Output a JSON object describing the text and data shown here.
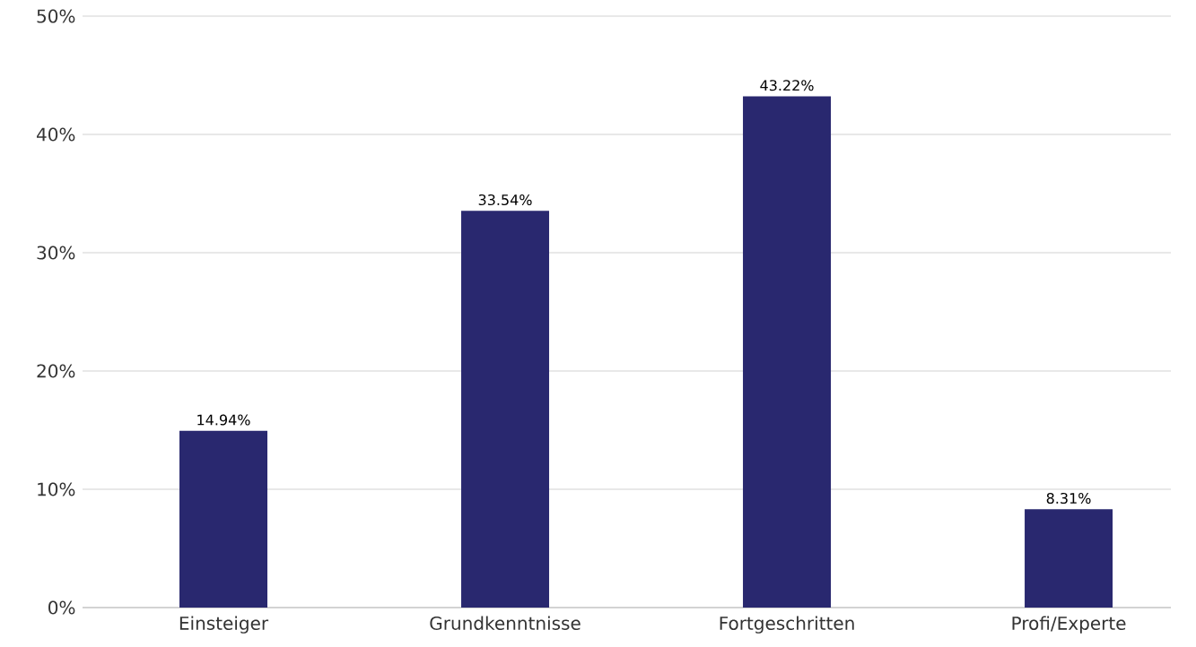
{
  "chart_data": {
    "type": "bar",
    "categories": [
      "Einsteiger",
      "Grundkenntnisse",
      "Fortgeschritten",
      "Profi/Experte"
    ],
    "values": [
      14.94,
      33.54,
      43.22,
      8.31
    ],
    "value_labels": [
      "14.94%",
      "33.54%",
      "43.22%",
      "8.31%"
    ],
    "color": "#29286f",
    "ylim": [
      0,
      50
    ],
    "yticks": [
      {
        "value": 0,
        "label": "0%"
      },
      {
        "value": 10,
        "label": "10%"
      },
      {
        "value": 20,
        "label": "20%"
      },
      {
        "value": 30,
        "label": "30%"
      },
      {
        "value": 40,
        "label": "40%"
      },
      {
        "value": 50,
        "label": "50%"
      }
    ],
    "grid": "y"
  }
}
